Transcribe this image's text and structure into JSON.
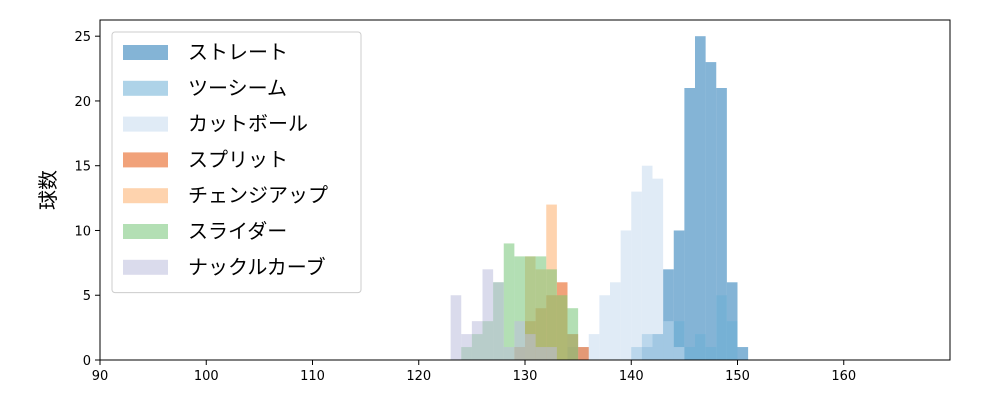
{
  "chart_data": {
    "type": "histogram",
    "title": "",
    "xlabel": "",
    "ylabel": "球数",
    "xlim": [
      90,
      170
    ],
    "ylim": [
      0,
      26.25
    ],
    "xticks": [
      90,
      100,
      110,
      120,
      130,
      140,
      150,
      160
    ],
    "yticks": [
      0,
      5,
      10,
      15,
      20,
      25
    ],
    "grid": false,
    "legend_position": "top-left",
    "series": [
      {
        "name": "ストレート",
        "color": "#1f77b4",
        "bins": [
          {
            "x0": 141,
            "x1": 142,
            "count": 1
          },
          {
            "x0": 142,
            "x1": 143,
            "count": 2
          },
          {
            "x0": 143,
            "x1": 144,
            "count": 7
          },
          {
            "x0": 144,
            "x1": 145,
            "count": 10
          },
          {
            "x0": 145,
            "x1": 146,
            "count": 21
          },
          {
            "x0": 146,
            "x1": 147,
            "count": 25
          },
          {
            "x0": 147,
            "x1": 148,
            "count": 23
          },
          {
            "x0": 148,
            "x1": 149,
            "count": 21
          },
          {
            "x0": 149,
            "x1": 150,
            "count": 6
          },
          {
            "x0": 150,
            "x1": 151,
            "count": 1
          }
        ]
      },
      {
        "name": "ツーシーム",
        "color": "#6baed6",
        "bins": [
          {
            "x0": 140,
            "x1": 141,
            "count": 1
          },
          {
            "x0": 141,
            "x1": 142,
            "count": 2
          },
          {
            "x0": 142,
            "x1": 143,
            "count": 2
          },
          {
            "x0": 143,
            "x1": 144,
            "count": 3
          },
          {
            "x0": 144,
            "x1": 145,
            "count": 3
          },
          {
            "x0": 145,
            "x1": 146,
            "count": 1
          },
          {
            "x0": 146,
            "x1": 147,
            "count": 2
          },
          {
            "x0": 147,
            "x1": 148,
            "count": 1
          },
          {
            "x0": 148,
            "x1": 149,
            "count": 5
          },
          {
            "x0": 149,
            "x1": 150,
            "count": 3
          }
        ]
      },
      {
        "name": "カットボール",
        "color": "#c6dbef",
        "bins": [
          {
            "x0": 134,
            "x1": 135,
            "count": 1
          },
          {
            "x0": 135,
            "x1": 136,
            "count": 1
          },
          {
            "x0": 136,
            "x1": 137,
            "count": 2
          },
          {
            "x0": 137,
            "x1": 138,
            "count": 5
          },
          {
            "x0": 138,
            "x1": 139,
            "count": 6
          },
          {
            "x0": 139,
            "x1": 140,
            "count": 10
          },
          {
            "x0": 140,
            "x1": 141,
            "count": 13
          },
          {
            "x0": 141,
            "x1": 142,
            "count": 15
          },
          {
            "x0": 142,
            "x1": 143,
            "count": 14
          },
          {
            "x0": 143,
            "x1": 144,
            "count": 3
          },
          {
            "x0": 144,
            "x1": 145,
            "count": 1
          }
        ]
      },
      {
        "name": "スプリット",
        "color": "#e6550d",
        "bins": [
          {
            "x0": 129,
            "x1": 130,
            "count": 1
          },
          {
            "x0": 130,
            "x1": 131,
            "count": 3
          },
          {
            "x0": 131,
            "x1": 132,
            "count": 4
          },
          {
            "x0": 132,
            "x1": 133,
            "count": 5
          },
          {
            "x0": 133,
            "x1": 134,
            "count": 6
          },
          {
            "x0": 134,
            "x1": 135,
            "count": 2
          },
          {
            "x0": 135,
            "x1": 136,
            "count": 1
          }
        ]
      },
      {
        "name": "チェンジアップ",
        "color": "#fdae6b",
        "bins": [
          {
            "x0": 130,
            "x1": 131,
            "count": 8
          },
          {
            "x0": 131,
            "x1": 132,
            "count": 7
          },
          {
            "x0": 132,
            "x1": 133,
            "count": 12
          },
          {
            "x0": 133,
            "x1": 134,
            "count": 5
          }
        ]
      },
      {
        "name": "スライダー",
        "color": "#74c476",
        "bins": [
          {
            "x0": 124,
            "x1": 125,
            "count": 1
          },
          {
            "x0": 125,
            "x1": 126,
            "count": 2
          },
          {
            "x0": 126,
            "x1": 127,
            "count": 3
          },
          {
            "x0": 127,
            "x1": 128,
            "count": 6
          },
          {
            "x0": 128,
            "x1": 129,
            "count": 9
          },
          {
            "x0": 129,
            "x1": 130,
            "count": 8
          },
          {
            "x0": 130,
            "x1": 131,
            "count": 8
          },
          {
            "x0": 131,
            "x1": 132,
            "count": 8
          },
          {
            "x0": 132,
            "x1": 133,
            "count": 7
          },
          {
            "x0": 133,
            "x1": 134,
            "count": 5
          },
          {
            "x0": 134,
            "x1": 135,
            "count": 4
          }
        ]
      },
      {
        "name": "ナックルカーブ",
        "color": "#bcbddc",
        "bins": [
          {
            "x0": 123,
            "x1": 124,
            "count": 5
          },
          {
            "x0": 124,
            "x1": 125,
            "count": 2
          },
          {
            "x0": 125,
            "x1": 126,
            "count": 3
          },
          {
            "x0": 126,
            "x1": 127,
            "count": 7
          },
          {
            "x0": 127,
            "x1": 128,
            "count": 6
          },
          {
            "x0": 128,
            "x1": 129,
            "count": 1
          },
          {
            "x0": 129,
            "x1": 130,
            "count": 3
          },
          {
            "x0": 130,
            "x1": 131,
            "count": 2
          },
          {
            "x0": 131,
            "x1": 132,
            "count": 1
          },
          {
            "x0": 132,
            "x1": 133,
            "count": 1
          }
        ]
      }
    ]
  }
}
